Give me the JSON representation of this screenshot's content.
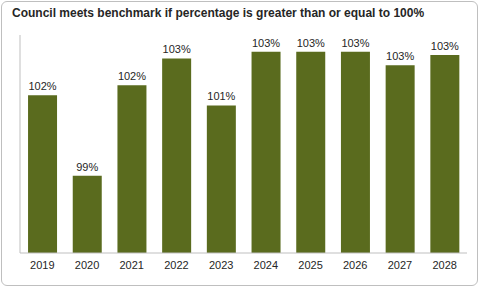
{
  "chart_data": {
    "type": "bar",
    "title": "Council meets benchmark if percentage is greater than or equal to 100%",
    "categories": [
      "2019",
      "2020",
      "2021",
      "2022",
      "2023",
      "2024",
      "2025",
      "2026",
      "2027",
      "2028"
    ],
    "values": [
      101.7,
      99.3,
      102.0,
      102.8,
      101.4,
      103.0,
      103.0,
      103.0,
      102.6,
      102.9
    ],
    "value_labels": [
      "102%",
      "99%",
      "102%",
      "103%",
      "101%",
      "103%",
      "103%",
      "103%",
      "103%",
      "103%"
    ],
    "color": "#5a6b1e",
    "ylim": [
      97,
      103.5
    ],
    "yticks": [],
    "grid": false,
    "data_labels": true,
    "tick_labels": "x"
  }
}
